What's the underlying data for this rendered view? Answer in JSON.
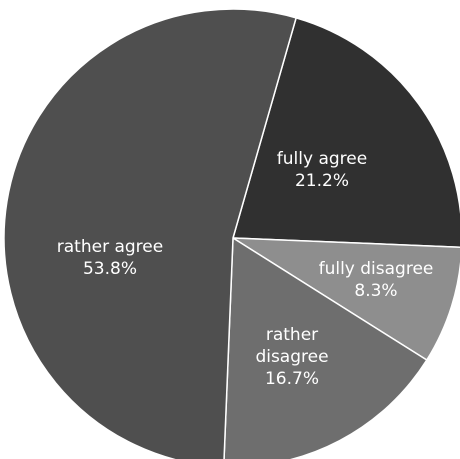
{
  "chart_data": {
    "type": "pie",
    "slices": [
      {
        "label": "fully agree",
        "value_label": "21.2%",
        "value": 21.2,
        "color": "#303030",
        "label_lines": [
          "fully agree",
          "21.2%"
        ]
      },
      {
        "label": "fully disagree",
        "value_label": "8.3%",
        "value": 8.3,
        "color": "#8e8e8e",
        "label_lines": [
          "fully disagree",
          "8.3%"
        ]
      },
      {
        "label": "rather disagree",
        "value_label": "16.7%",
        "value": 16.7,
        "color": "#6e6e6e",
        "label_lines": [
          "rather",
          "disagree",
          "16.7%"
        ]
      },
      {
        "label": "rather agree",
        "value_label": "53.8%",
        "value": 53.8,
        "color": "#4f4f4f",
        "label_lines": [
          "rather agree",
          "53.8%"
        ]
      }
    ]
  }
}
